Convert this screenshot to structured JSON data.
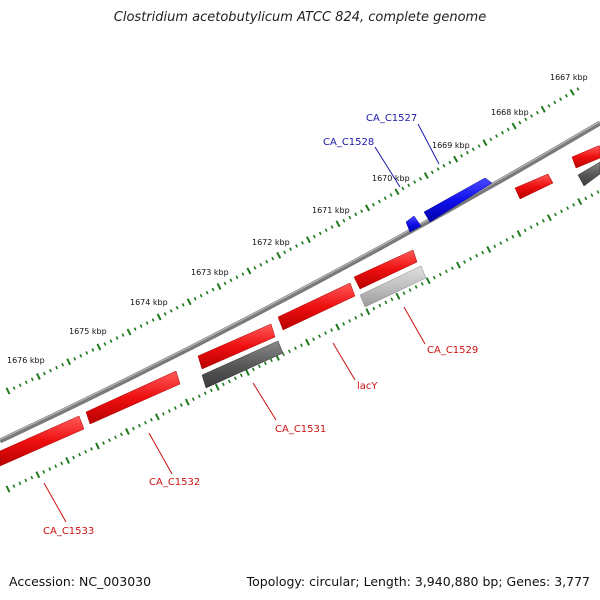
{
  "title": "Clostridium acetobutylicum ATCC 824, complete genome",
  "footer": {
    "accession": "Accession: NC_003030",
    "summary": "Topology: circular; Length: 3,940,880 bp; Genes: 3,777"
  },
  "colors": {
    "backbone": "#8a8a8a",
    "tick": "#1f7a1f",
    "plus_gene": "#1010ee",
    "minus_gene": "#ee1111",
    "other_gene_dark": "#5a5a5a",
    "other_gene_light": "#bdbdbd",
    "label_plus": "#1a1aa8",
    "label_minus": "#cc1111"
  },
  "scale_labels": [
    "1667 kbp",
    "1668 kbp",
    "1669 kbp",
    "1670 kbp",
    "1671 kbp",
    "1672 kbp",
    "1673 kbp",
    "1674 kbp",
    "1675 kbp",
    "1676 kbp"
  ],
  "gene_labels": [
    {
      "name": "CA_C1527",
      "strand": "plus"
    },
    {
      "name": "CA_C1528",
      "strand": "plus"
    },
    {
      "name": "CA_C1529",
      "strand": "minus"
    },
    {
      "name": "lacY",
      "strand": "minus"
    },
    {
      "name": "CA_C1531",
      "strand": "minus"
    },
    {
      "name": "CA_C1532",
      "strand": "minus"
    },
    {
      "name": "CA_C1533",
      "strand": "minus"
    }
  ]
}
